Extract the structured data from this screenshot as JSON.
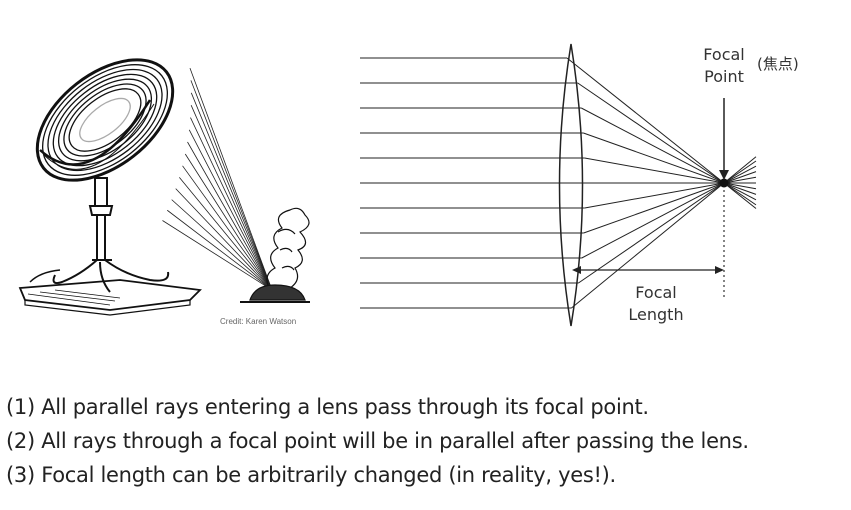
{
  "illustration": {
    "credit": "Credit: Karen Watson"
  },
  "diagram": {
    "focal_point_line1": "Focal",
    "focal_point_line2": "Point",
    "focal_point_kanji": "(焦点)",
    "focal_length_line1": "Focal",
    "focal_length_line2": "Length",
    "ray_count": 11
  },
  "notes": [
    "(1) All parallel rays entering a lens pass through its focal point.",
    "(2) All rays through a focal point will be in parallel after passing the lens.",
    "(3) Focal length can be arbitrarily changed (in reality, yes!)."
  ]
}
